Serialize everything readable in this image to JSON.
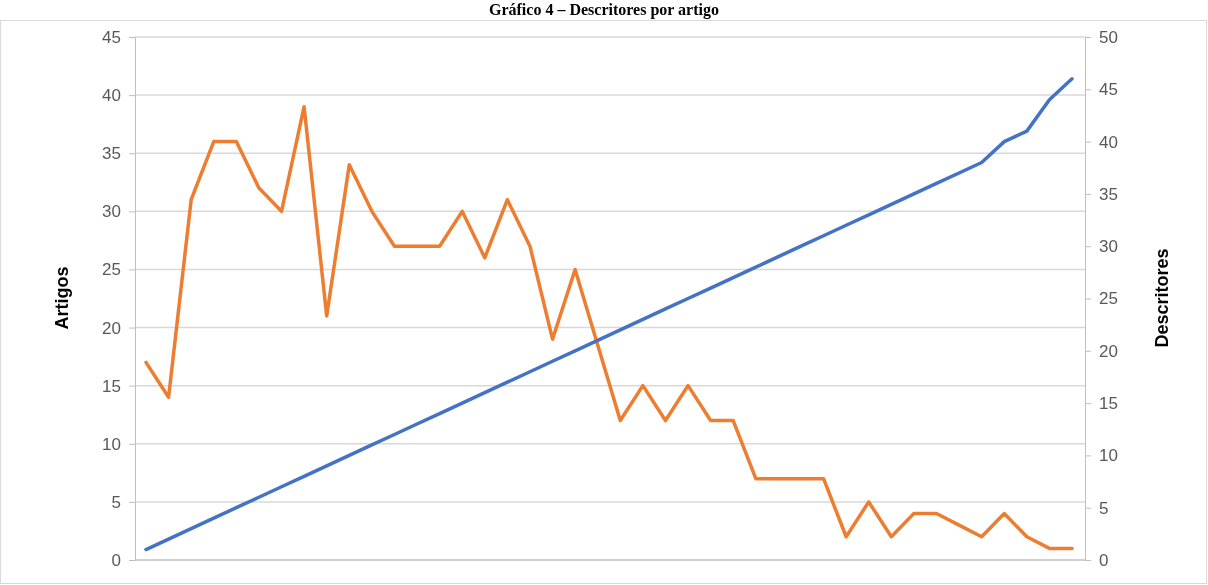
{
  "chart_data": {
    "type": "line",
    "title": "Gráfico 4 – Descritores por artigo",
    "ylabel": "Artigos",
    "y2label": "Descritores",
    "categories": [
      null,
      null,
      null,
      null,
      null,
      null,
      null,
      null,
      null,
      null,
      null,
      null,
      null,
      null,
      null,
      null,
      null,
      null,
      null,
      null,
      null,
      null,
      null,
      null,
      null,
      null,
      null,
      null,
      null,
      null,
      null,
      null,
      null,
      null,
      null,
      null,
      null,
      null,
      null,
      null,
      null,
      null
    ],
    "series": [
      {
        "color": "#ed7d31",
        "values": [
          17,
          14,
          31,
          36,
          36,
          32,
          30,
          39,
          21,
          34,
          30,
          27,
          27,
          27,
          30,
          26,
          31,
          27,
          19,
          25,
          18.5,
          12,
          15,
          12,
          15,
          12,
          12,
          7,
          7,
          7,
          7,
          2,
          5,
          2,
          4,
          4,
          3,
          2,
          4,
          2,
          1,
          1
        ]
      },
      {
        "color": "#4472c4",
        "axis": "y2",
        "values": [
          1,
          2,
          3,
          4,
          5,
          6,
          7,
          8,
          9,
          10,
          11,
          12,
          13,
          14,
          15,
          16,
          17,
          18,
          19,
          20,
          21,
          22,
          23,
          24,
          25,
          26,
          27,
          28,
          29,
          30,
          31,
          32,
          33,
          34,
          35,
          36,
          37,
          38,
          40,
          41,
          44,
          46
        ]
      }
    ],
    "ylim": [
      0,
      45
    ],
    "yticks": [
      0,
      5,
      10,
      15,
      20,
      25,
      30,
      35,
      40,
      45
    ],
    "y2lim": [
      0,
      50
    ],
    "y2ticks": [
      0,
      5,
      10,
      15,
      20,
      25,
      30,
      35,
      40,
      45,
      50
    ],
    "grid": "y",
    "marker": "none",
    "line_style": "solid"
  }
}
